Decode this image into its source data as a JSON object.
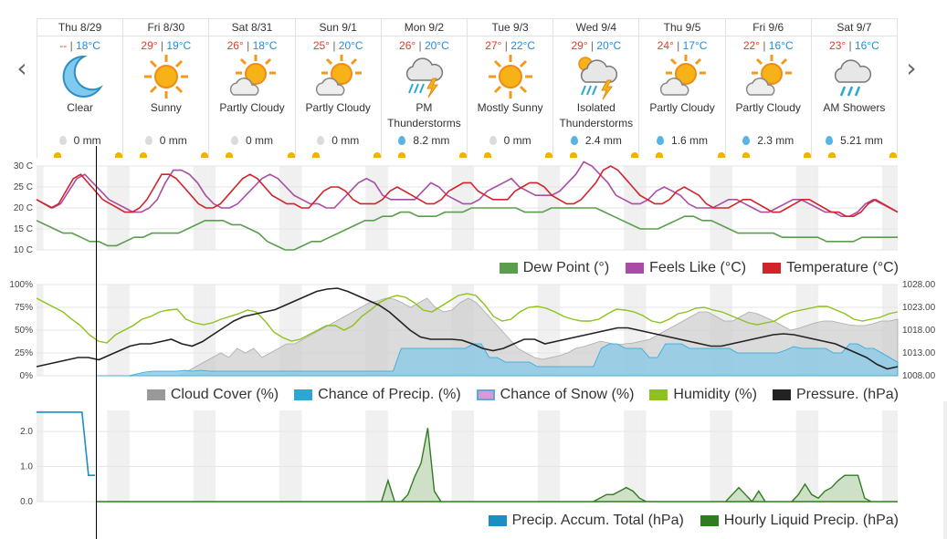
{
  "nav": {
    "prev": "‹",
    "next": "›"
  },
  "days": [
    {
      "name": "Thu 8/29",
      "hi": "--",
      "lo": "18°C",
      "icon": "moon-icon",
      "cond": "Clear",
      "precip": "0 mm",
      "wet": false
    },
    {
      "name": "Fri 8/30",
      "hi": "29°",
      "lo": "19°C",
      "icon": "sun-icon",
      "cond": "Sunny",
      "precip": "0 mm",
      "wet": false
    },
    {
      "name": "Sat 8/31",
      "hi": "26°",
      "lo": "18°C",
      "icon": "partly-cloudy-icon",
      "cond": "Partly Cloudy",
      "precip": "0 mm",
      "wet": false
    },
    {
      "name": "Sun 9/1",
      "hi": "25°",
      "lo": "20°C",
      "icon": "partly-cloudy-icon",
      "cond": "Partly Cloudy",
      "precip": "0 mm",
      "wet": false
    },
    {
      "name": "Mon 9/2",
      "hi": "26°",
      "lo": "20°C",
      "icon": "thunderstorm-icon",
      "cond": "PM Thunderstorms",
      "precip": "8.2 mm",
      "wet": true
    },
    {
      "name": "Tue 9/3",
      "hi": "27°",
      "lo": "22°C",
      "icon": "sun-icon",
      "cond": "Mostly Sunny",
      "precip": "0 mm",
      "wet": false
    },
    {
      "name": "Wed 9/4",
      "hi": "29°",
      "lo": "20°C",
      "icon": "isolated-thunderstorm-icon",
      "cond": "Isolated Thunderstorms",
      "precip": "2.4 mm",
      "wet": true
    },
    {
      "name": "Thu 9/5",
      "hi": "24°",
      "lo": "17°C",
      "icon": "partly-cloudy-icon",
      "cond": "Partly Cloudy",
      "precip": "1.6 mm",
      "wet": true
    },
    {
      "name": "Fri 9/6",
      "hi": "22°",
      "lo": "16°C",
      "icon": "partly-cloudy-icon",
      "cond": "Partly Cloudy",
      "precip": "2.3 mm",
      "wet": true
    },
    {
      "name": "Sat 9/7",
      "hi": "23°",
      "lo": "16°C",
      "icon": "showers-icon",
      "cond": "AM Showers",
      "precip": "5.21 mm",
      "wet": true
    }
  ],
  "colors": {
    "temp": "#d2232a",
    "feels": "#a94ca6",
    "dew": "#5a9e4d",
    "cloud": "#999999",
    "pop": "#2ba7d6",
    "snow": "#d79ad2",
    "humidity": "#8cc21a",
    "pressure": "#222222",
    "accum": "#1a8fc4",
    "hourly": "#2f7d1e"
  },
  "legends": {
    "temp": [
      "Dew Point (°)",
      "Feels Like (°C)",
      "Temperature (°C)"
    ],
    "atmo": [
      "Cloud Cover (%)",
      "Chance of Precip. (%)",
      "Chance of Snow (%)",
      "Humidity (%)",
      "Pressure. (hPa)"
    ],
    "precip": [
      "Precip. Accum. Total (hPa)",
      "Hourly Liquid Precip. (hPa)"
    ]
  },
  "chart_data": [
    {
      "type": "line",
      "ylabels": [
        "30 C",
        "25 C",
        "20 C",
        "15 C",
        "10 C"
      ],
      "ylim": [
        10,
        30
      ],
      "x_start": "Thu 8/29",
      "x_end": "Sat 9/7",
      "series": [
        {
          "name": "Temperature (°C)",
          "values": [
            22,
            21,
            20,
            21,
            24,
            27,
            28,
            26,
            24,
            22,
            21,
            20,
            19,
            19,
            20,
            22,
            25,
            28,
            28,
            27,
            25,
            23,
            21,
            20,
            20,
            21,
            23,
            25,
            27,
            28,
            27,
            25,
            23,
            22,
            21,
            21,
            20,
            20,
            22,
            24,
            25,
            25,
            24,
            22,
            21,
            21,
            21,
            22,
            24,
            25,
            24,
            23,
            22,
            21,
            21,
            22,
            24,
            25,
            26,
            26,
            24,
            23,
            22,
            22,
            22,
            24,
            25,
            26,
            26,
            25,
            23,
            22,
            21,
            21,
            22,
            24,
            26,
            29,
            30,
            29,
            27,
            25,
            23,
            22,
            21,
            21,
            22,
            24,
            25,
            24,
            23,
            21,
            20,
            20,
            20,
            21,
            22,
            22,
            21,
            20,
            19,
            19,
            20,
            21,
            22,
            22,
            21,
            20,
            19,
            19,
            18,
            18,
            19,
            21,
            22,
            21,
            20,
            19
          ]
        },
        {
          "name": "Feels Like (°C)",
          "values": [
            22,
            21,
            20,
            21,
            24,
            27,
            28,
            26,
            24,
            22,
            21,
            20,
            19,
            19,
            20,
            22,
            26,
            29,
            29,
            28,
            26,
            23,
            21,
            20,
            20,
            21,
            23,
            25,
            27,
            28,
            27,
            25,
            23,
            22,
            21,
            21,
            20,
            20,
            22,
            24,
            26,
            27,
            26,
            23,
            22,
            22,
            22,
            22,
            24,
            26,
            25,
            23,
            22,
            21,
            21,
            22,
            24,
            25,
            26,
            27,
            25,
            24,
            23,
            23,
            23,
            24,
            26,
            28,
            31,
            30,
            28,
            26,
            23,
            22,
            21,
            21,
            22,
            24,
            25,
            24,
            23,
            21,
            20,
            20,
            20,
            21,
            22,
            22,
            21,
            20,
            19,
            19,
            20,
            21,
            22,
            22,
            21,
            20,
            19,
            19,
            18,
            18,
            19,
            21,
            22,
            21,
            20,
            19
          ]
        },
        {
          "name": "Dew Point (°)",
          "values": [
            17,
            16,
            15,
            14,
            14,
            13,
            12,
            12,
            11,
            11,
            12,
            13,
            13,
            14,
            14,
            14,
            14,
            15,
            16,
            17,
            17,
            17,
            16,
            16,
            15,
            14,
            12,
            11,
            10,
            10,
            11,
            12,
            12,
            13,
            14,
            15,
            16,
            17,
            17,
            18,
            18,
            19,
            19,
            18,
            18,
            18,
            19,
            19,
            19,
            20,
            20,
            20,
            20,
            20,
            20,
            19,
            19,
            19,
            20,
            20,
            20,
            20,
            20,
            20,
            19,
            18,
            17,
            16,
            15,
            15,
            15,
            16,
            17,
            18,
            18,
            17,
            17,
            16,
            15,
            14,
            14,
            14,
            14,
            14,
            13,
            13,
            13,
            13,
            13,
            12,
            12,
            12,
            12,
            13,
            13,
            13,
            13,
            13
          ]
        }
      ]
    },
    {
      "type": "area",
      "ylabels_left": [
        "100%",
        "75%",
        "50%",
        "25%",
        "0%"
      ],
      "ylabels_right": [
        "1028.00",
        "1023.00",
        "1018.00",
        "1013.00",
        "1008.00"
      ],
      "series": [
        {
          "name": "Cloud Cover (%)",
          "values": [
            0,
            0,
            0,
            0,
            0,
            0,
            0,
            0,
            0,
            0,
            0,
            5,
            10,
            15,
            20,
            25,
            20,
            30,
            25,
            30,
            20,
            25,
            30,
            35,
            35,
            40,
            45,
            50,
            55,
            60,
            65,
            70,
            75,
            80,
            82,
            85,
            84,
            80,
            75,
            80,
            85,
            75,
            70,
            72,
            80,
            85,
            80,
            70,
            60,
            50,
            40,
            30,
            25,
            20,
            18,
            20,
            22,
            25,
            30,
            32,
            35,
            38,
            36,
            34,
            35,
            36,
            38,
            40,
            45,
            50,
            55,
            60,
            65,
            70,
            70,
            65,
            60,
            60,
            65,
            70,
            68,
            64,
            60,
            55,
            50,
            52,
            55,
            58,
            60,
            60,
            58,
            56,
            55,
            55,
            57,
            60,
            60,
            62
          ]
        },
        {
          "name": "Chance of Precip. (%)",
          "values": [
            0,
            0,
            0,
            0,
            0,
            2,
            4,
            5,
            5,
            5,
            5,
            6,
            5,
            6,
            5,
            5,
            5,
            5,
            5,
            5,
            5,
            5,
            5,
            5,
            5,
            5,
            5,
            5,
            5,
            5,
            5,
            5,
            5,
            5,
            5,
            5,
            5,
            5,
            30,
            30,
            30,
            30,
            30,
            30,
            30,
            30,
            30,
            35,
            35,
            20,
            20,
            15,
            15,
            15,
            15,
            10,
            10,
            10,
            10,
            10,
            10,
            10,
            10,
            30,
            35,
            35,
            30,
            30,
            30,
            20,
            20,
            35,
            35,
            35,
            30,
            30,
            30,
            30,
            30,
            30,
            25,
            25,
            25,
            25,
            25,
            25,
            28,
            32,
            30,
            30,
            30,
            30,
            25,
            25,
            35,
            35,
            30,
            30,
            25,
            20,
            15
          ]
        },
        {
          "name": "Humidity (%)",
          "values": [
            85,
            80,
            75,
            70,
            62,
            55,
            45,
            38,
            36,
            45,
            50,
            55,
            62,
            65,
            70,
            72,
            73,
            62,
            58,
            56,
            58,
            62,
            65,
            68,
            72,
            70,
            60,
            48,
            42,
            38,
            40,
            45,
            50,
            55,
            55,
            50,
            55,
            65,
            72,
            80,
            85,
            88,
            86,
            80,
            72,
            70,
            76,
            82,
            88,
            90,
            88,
            78,
            65,
            60,
            62,
            70,
            75,
            76,
            74,
            70,
            65,
            62,
            60,
            60,
            62,
            68,
            73,
            72,
            70,
            66,
            60,
            58,
            62,
            68,
            70,
            74,
            75,
            72,
            70,
            66,
            62,
            58,
            56,
            58,
            60,
            66,
            70,
            72,
            74,
            76,
            76,
            72,
            68,
            62,
            60,
            62,
            64,
            68,
            70
          ]
        },
        {
          "name": "Pressure. (hPa)",
          "values": [
            1010,
            1010.5,
            1011,
            1011.5,
            1012,
            1012,
            1011.5,
            1012.5,
            1013.5,
            1014.5,
            1015,
            1015,
            1015.5,
            1016,
            1015,
            1014.5,
            1015.5,
            1017,
            1018.5,
            1020,
            1021,
            1021.5,
            1022,
            1022.5,
            1023.5,
            1024.5,
            1025.5,
            1026.5,
            1027,
            1027.2,
            1026.5,
            1025.5,
            1024.5,
            1023.5,
            1022,
            1020,
            1018,
            1016.5,
            1016,
            1016,
            1016,
            1015.8,
            1015,
            1014,
            1013.5,
            1014,
            1015,
            1016,
            1016,
            1015,
            1015.5,
            1016,
            1016.5,
            1017,
            1017.5,
            1018,
            1018.5,
            1018.5,
            1018,
            1017.5,
            1017,
            1016.5,
            1016,
            1015.5,
            1015,
            1014.5,
            1014.5,
            1015,
            1015.5,
            1016,
            1016.5,
            1017,
            1017.2,
            1017,
            1016.5,
            1016,
            1015.5,
            1015,
            1014,
            1013,
            1012,
            1010.5,
            1009.5,
            1010
          ]
        }
      ]
    },
    {
      "type": "area",
      "ylabels": [
        "2.0",
        "1.0",
        "0.0"
      ],
      "ylim": [
        0,
        2.6
      ],
      "series": [
        {
          "name": "Precip. Accum. Total (hPa)",
          "values": [
            2.55,
            2.55,
            2.55,
            2.55,
            2.55,
            2.55,
            2.55,
            2.55,
            0.75,
            0.75
          ]
        },
        {
          "name": "Hourly Liquid Precip. (hPa)",
          "values": [
            0,
            0,
            0,
            0,
            0,
            0,
            0,
            0,
            0,
            0,
            0,
            0,
            0,
            0,
            0,
            0,
            0,
            0,
            0,
            0,
            0,
            0,
            0,
            0,
            0,
            0,
            0,
            0,
            0,
            0,
            0,
            0,
            0,
            0,
            0,
            0,
            0,
            0,
            0,
            0,
            0,
            0,
            0,
            0,
            0.6,
            0,
            0,
            0.2,
            0.7,
            1.1,
            2.1,
            0.3,
            0,
            0,
            0,
            0,
            0,
            0,
            0,
            0,
            0,
            0,
            0,
            0,
            0,
            0,
            0,
            0,
            0,
            0,
            0,
            0,
            0,
            0,
            0,
            0,
            0.1,
            0.2,
            0.2,
            0.3,
            0.4,
            0.3,
            0.1,
            0,
            0,
            0,
            0,
            0,
            0,
            0,
            0,
            0,
            0,
            0,
            0,
            0,
            0.2,
            0.4,
            0.2,
            0,
            0.3,
            0,
            0,
            0,
            0,
            0,
            0.2,
            0.5,
            0.2,
            0.1,
            0.3,
            0.4,
            0.6,
            0.75,
            0.75,
            0.75,
            0.1,
            0,
            0,
            0,
            0,
            0
          ]
        }
      ]
    }
  ]
}
